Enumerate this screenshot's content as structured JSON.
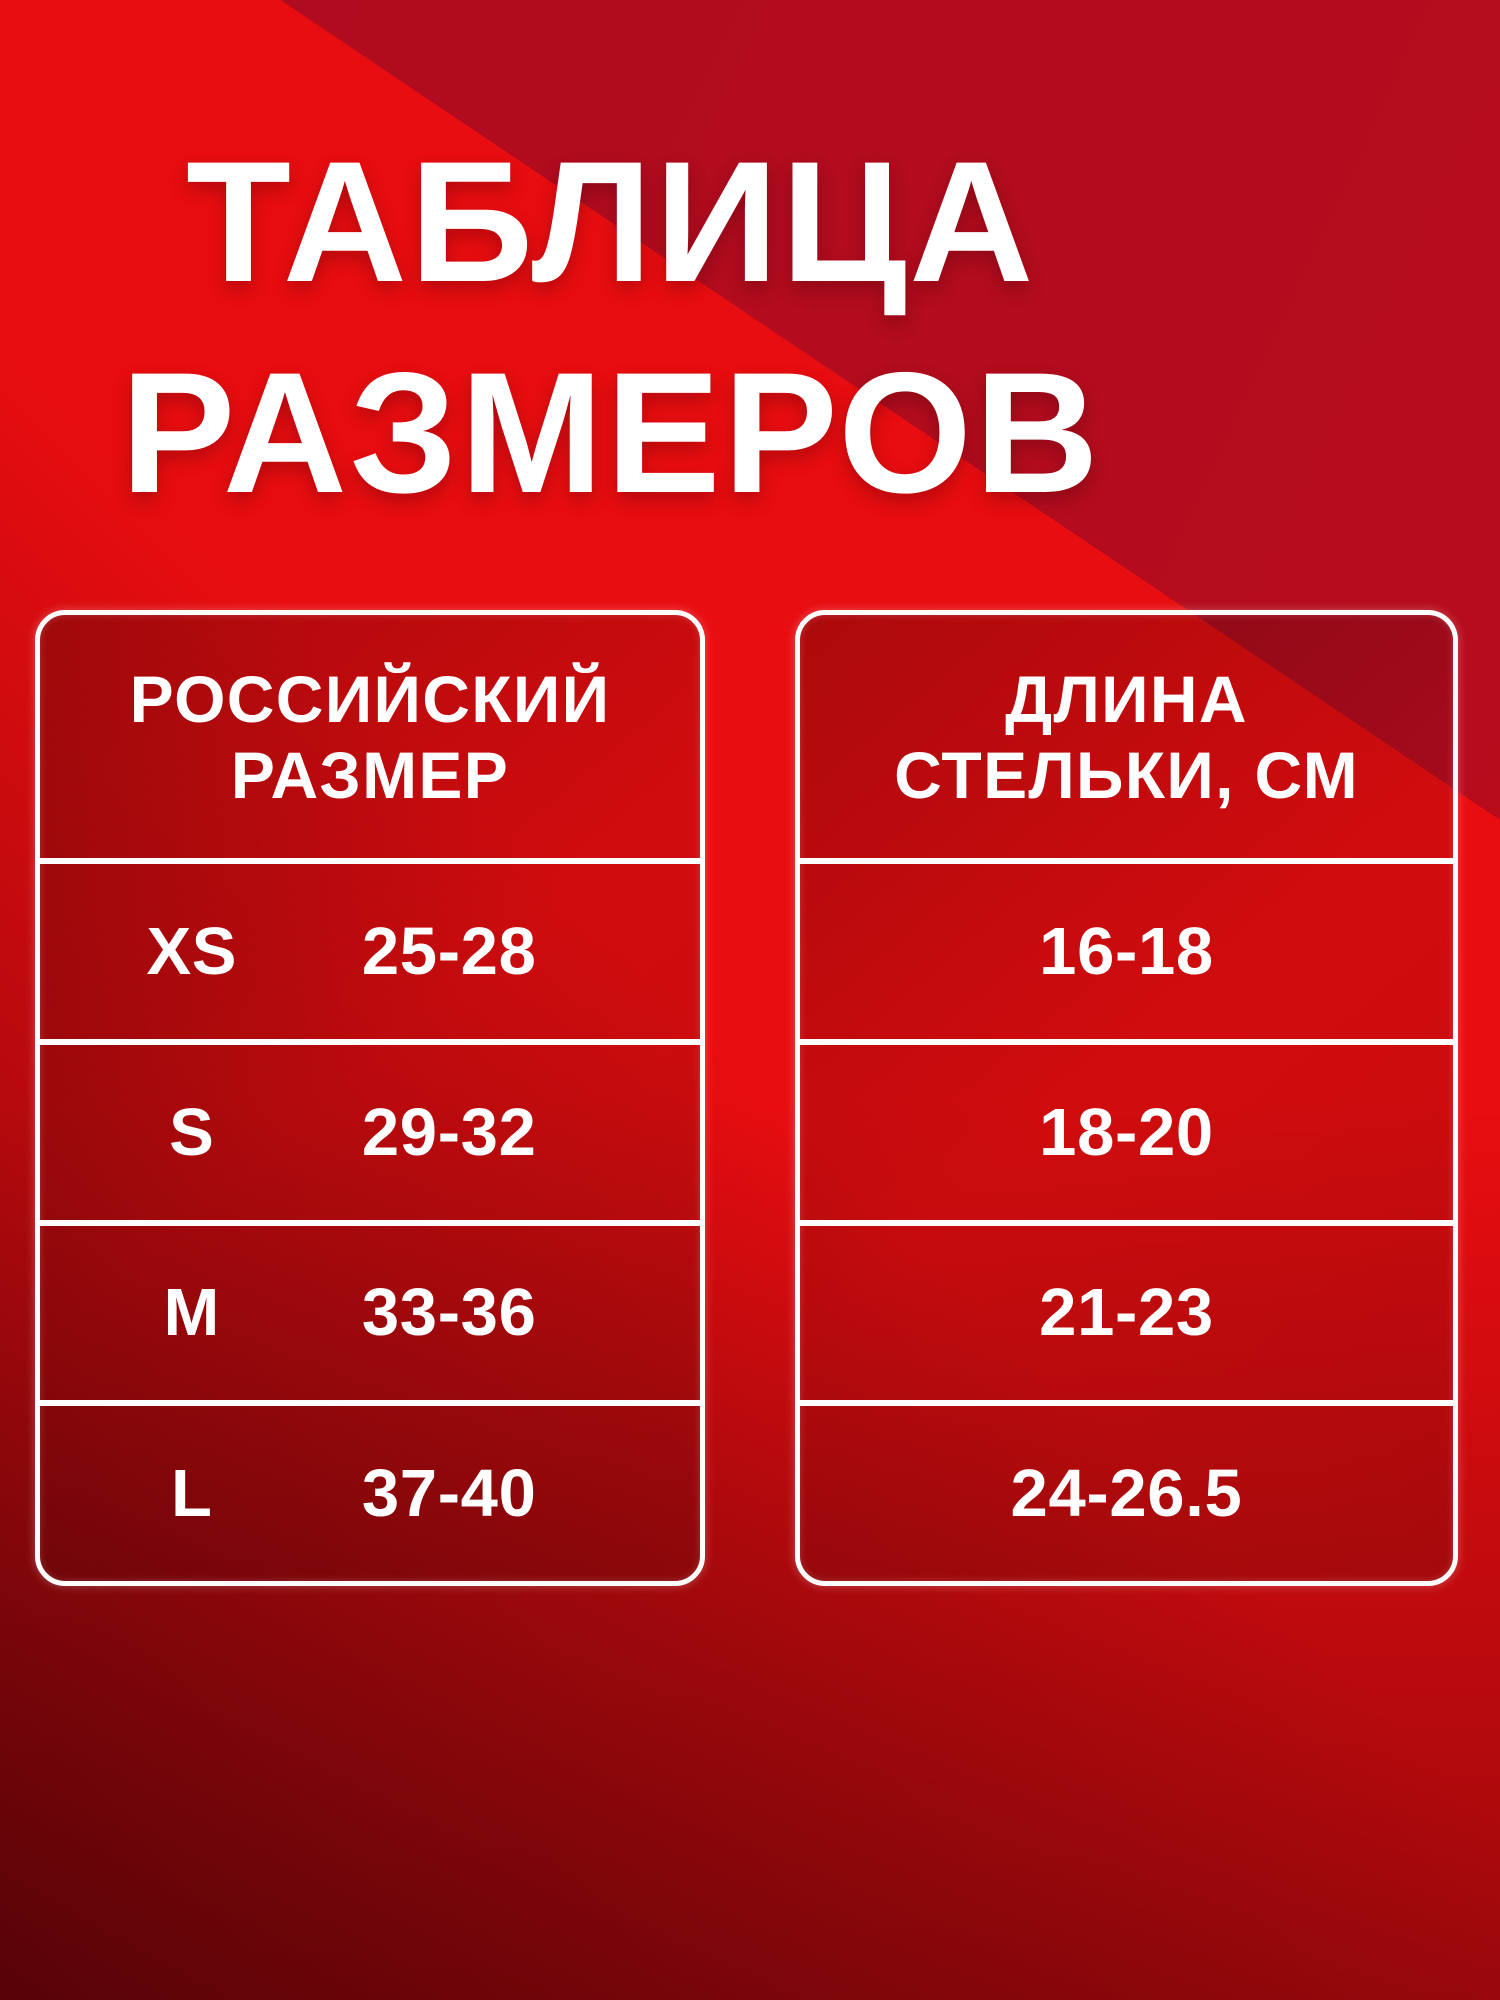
{
  "title": {
    "line1": "ТАБЛИЦА",
    "line2": "РАЗМЕРОВ"
  },
  "table": {
    "left": {
      "header": [
        "РОССИЙСКИЙ",
        "РАЗМЕР"
      ],
      "rows": [
        {
          "size": "XS",
          "range": "25-28"
        },
        {
          "size": "S",
          "range": "29-32"
        },
        {
          "size": "M",
          "range": "33-36"
        },
        {
          "size": "L",
          "range": "37-40"
        }
      ]
    },
    "right": {
      "header": [
        "ДЛИНА",
        "СТЕЛЬКИ, СМ"
      ],
      "rows": [
        "16-18",
        "18-20",
        "21-23",
        "24-26.5"
      ]
    }
  },
  "chart_data": {
    "type": "table",
    "title": "ТАБЛИЦА РАЗМЕРОВ",
    "columns": [
      "РОССИЙСКИЙ РАЗМЕР (размер)",
      "РОССИЙСКИЙ РАЗМЕР (диапазон)",
      "ДЛИНА СТЕЛЬКИ, СМ"
    ],
    "rows": [
      [
        "XS",
        "25-28",
        "16-18"
      ],
      [
        "S",
        "29-32",
        "18-20"
      ],
      [
        "M",
        "33-36",
        "21-23"
      ],
      [
        "L",
        "37-40",
        "24-26.5"
      ]
    ]
  },
  "colors": {
    "bright_red": "#e80d10",
    "dark_crimson_triangle": "#b40c1e",
    "bottom_vignette_maroon": "#6b060c",
    "text_and_lines": "#ffffff"
  }
}
